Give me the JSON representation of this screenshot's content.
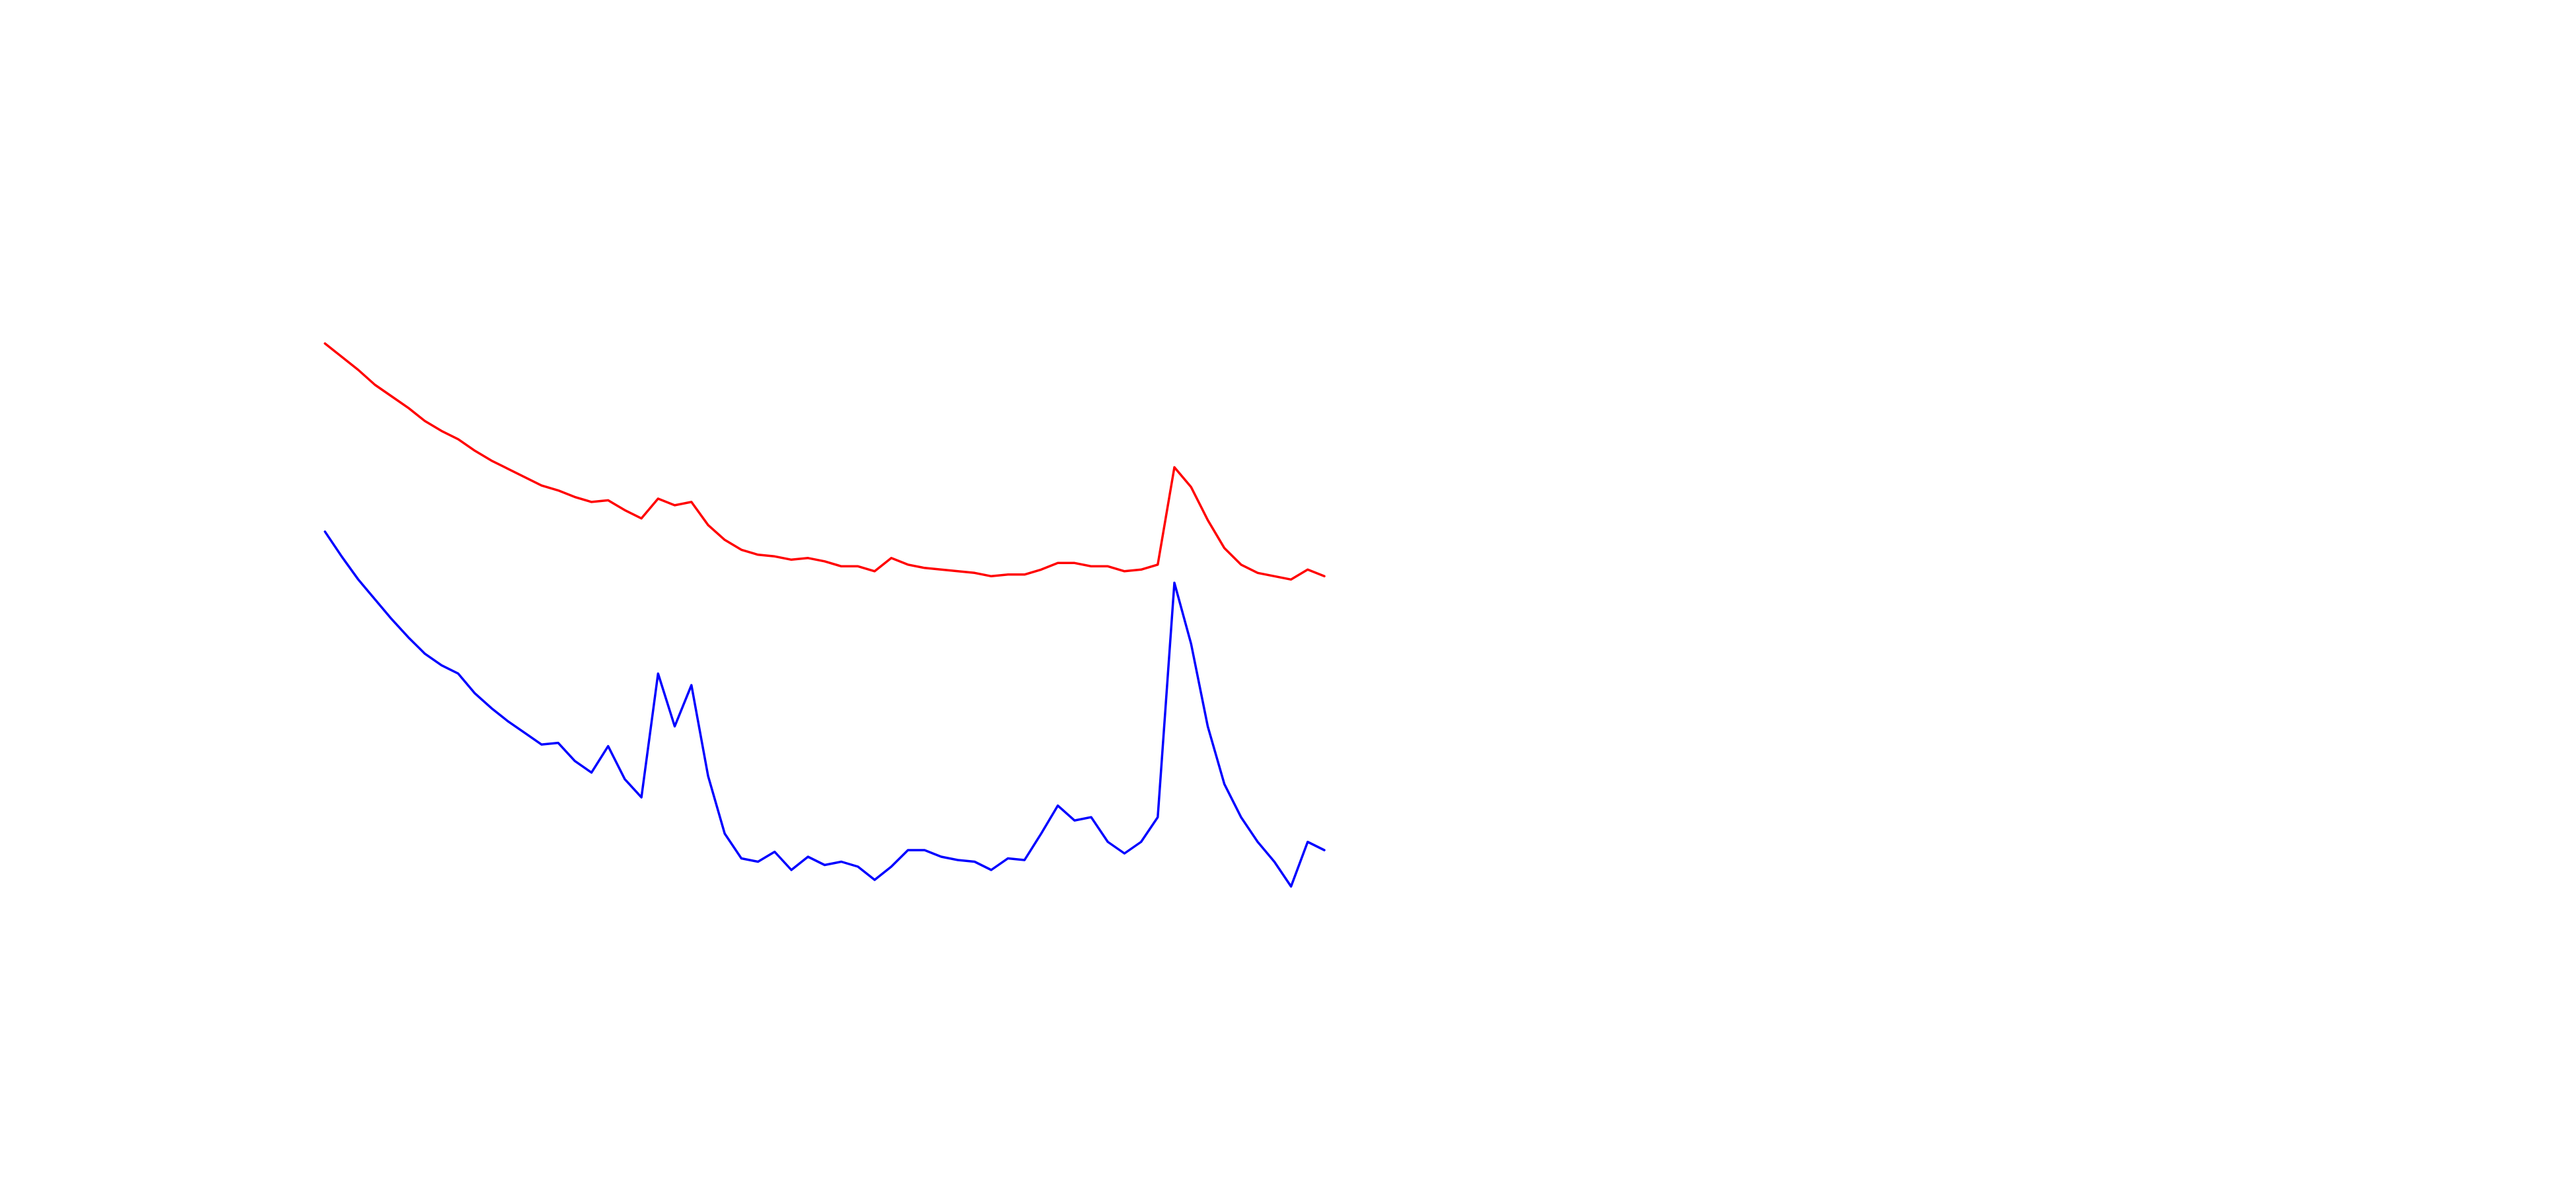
{
  "chart_data": {
    "type": "line",
    "series": [
      {
        "color": "#ff0000",
        "values": [
          392,
          384,
          376,
          367,
          360,
          353,
          345,
          339,
          334,
          327,
          321,
          316,
          311,
          306,
          303,
          299,
          296,
          297,
          291,
          286,
          298,
          294,
          296,
          282,
          273,
          267,
          264,
          263,
          261,
          262,
          260,
          257,
          257,
          254,
          262,
          258,
          256,
          255,
          254,
          253,
          251,
          252,
          252,
          255,
          259,
          259,
          257,
          257,
          254,
          255,
          258,
          317,
          305,
          285,
          268,
          258,
          253,
          251,
          249,
          255,
          251
        ]
      },
      {
        "color": "#0000ff",
        "values": [
          278,
          263,
          249,
          237,
          225,
          214,
          204,
          197,
          192,
          180,
          171,
          163,
          156,
          149,
          150,
          139,
          132,
          148,
          128,
          117,
          192,
          160,
          185,
          130,
          95,
          80,
          78,
          84,
          73,
          81,
          76,
          78,
          75,
          67,
          75,
          85,
          85,
          81,
          79,
          78,
          73,
          80,
          79,
          95,
          112,
          103,
          105,
          90,
          83,
          90,
          105,
          247,
          210,
          160,
          125,
          105,
          90,
          78,
          63,
          90,
          85
        ]
      }
    ]
  }
}
